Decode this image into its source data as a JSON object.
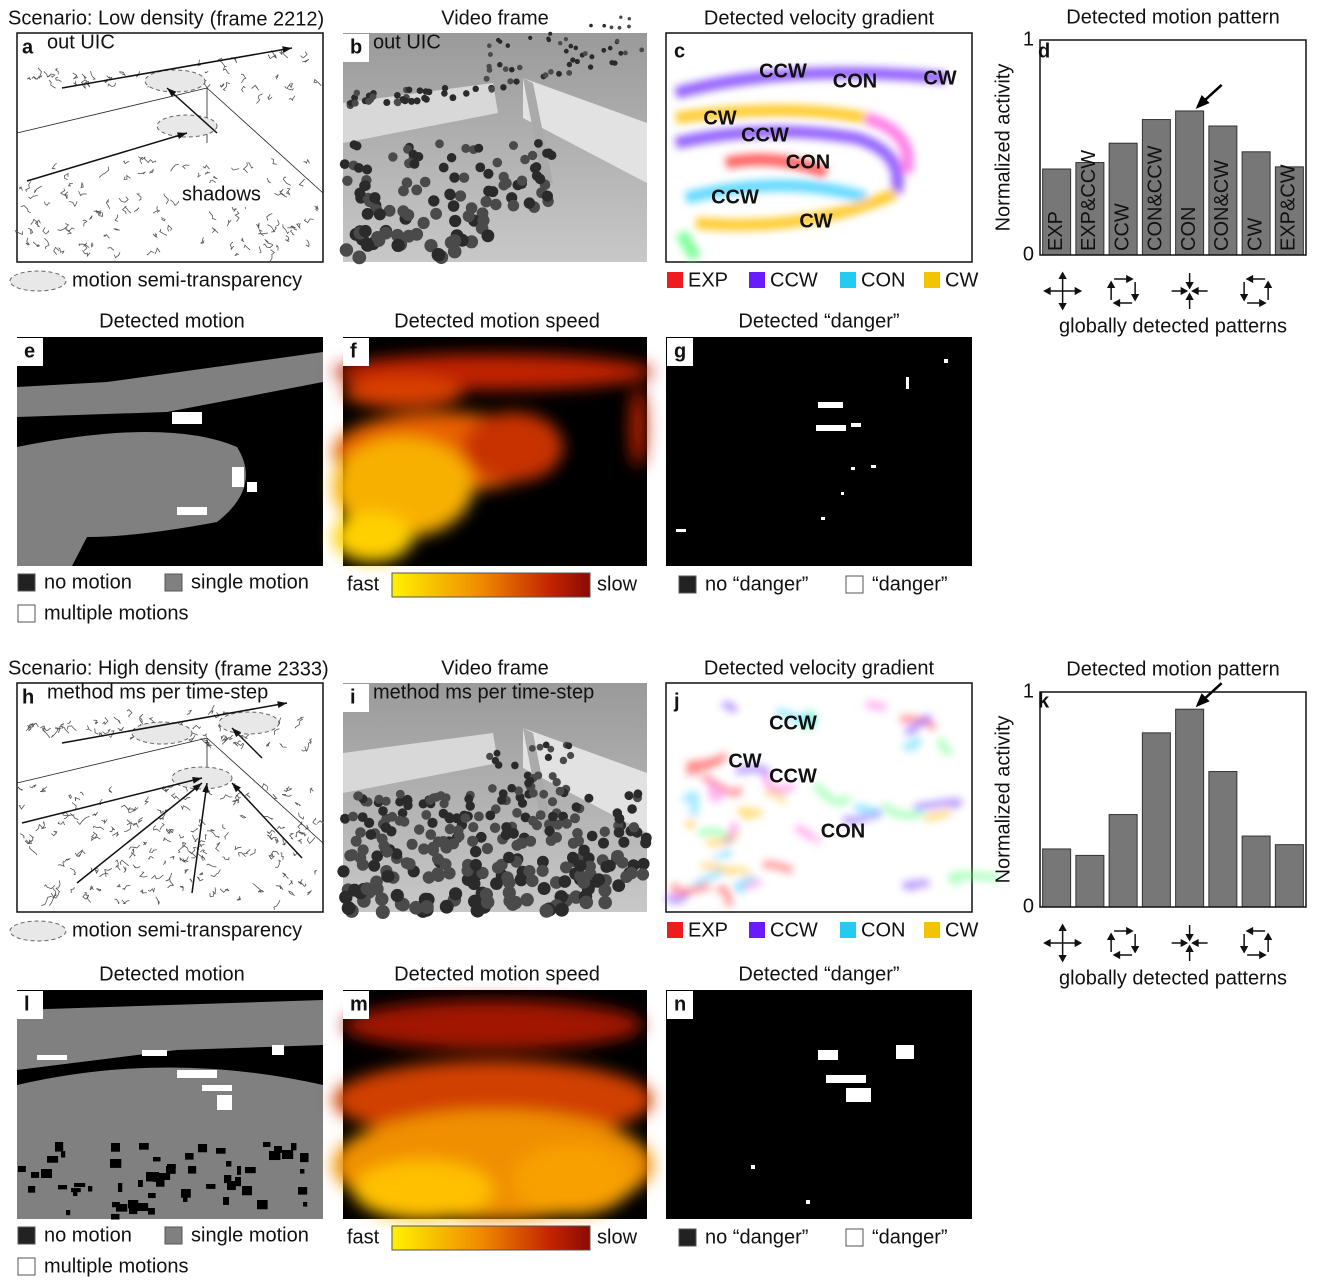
{
  "scenarios": [
    {
      "title": "Scenario: Low density",
      "frame": "(frame 2212)",
      "letters": [
        "a",
        "b",
        "c",
        "d",
        "e",
        "f",
        "g"
      ],
      "sketch_overlay": "out UIC",
      "video_overlay": "out UIC",
      "sketch_note": "shadows",
      "transparency_legend": "motion semi-transparency",
      "video_title": "Video frame",
      "gradient_title": "Detected velocity gradient",
      "gradient_labels": [
        "CCW",
        "CON",
        "CW",
        "CW",
        "CCW",
        "CON",
        "CCW",
        "CW"
      ],
      "gradient_legend": [
        "EXP",
        "CCW",
        "CON",
        "CW"
      ],
      "motion_title": "Detected motion",
      "motion_legend": [
        "no motion",
        "single motion",
        "multiple motions"
      ],
      "speed_title": "Detected motion speed",
      "speed_legend": [
        "fast",
        "slow"
      ],
      "danger_title": "Detected “danger”",
      "danger_legend": [
        "no “danger”",
        "“danger”"
      ],
      "pattern_caption": "globally detected patterns"
    },
    {
      "title": "Scenario: High density",
      "frame": "(frame 2333)",
      "letters": [
        "h",
        "i",
        "j",
        "k",
        "l",
        "m",
        "n"
      ],
      "sketch_overlay": "method ms per time-step",
      "video_overlay": "method ms per time-step",
      "transparency_legend": "motion semi-transparency",
      "video_title": "Video frame",
      "gradient_title": "Detected velocity gradient",
      "gradient_labels": [
        "CCW",
        "CW",
        "CCW",
        "CON"
      ],
      "gradient_legend": [
        "EXP",
        "CCW",
        "CON",
        "CW"
      ],
      "motion_title": "Detected motion",
      "motion_legend": [
        "no motion",
        "single motion",
        "multiple motions"
      ],
      "speed_title": "Detected motion speed",
      "speed_legend": [
        "fast",
        "slow"
      ],
      "danger_title": "Detected “danger”",
      "danger_legend": [
        "no “danger”",
        "“danger”"
      ],
      "pattern_caption": "globally detected patterns"
    }
  ],
  "chart_data": [
    {
      "type": "bar",
      "title": "Detected motion pattern",
      "y_label": "Normalized activity",
      "categories": [
        "EXP",
        "EXP&CCW",
        "CCW",
        "CON&CCW",
        "CON",
        "CON&CW",
        "CW",
        "EXP&CW"
      ],
      "values": [
        0.4,
        0.43,
        0.52,
        0.63,
        0.67,
        0.6,
        0.48,
        0.41
      ],
      "color": "#777777",
      "ylim": [
        0,
        1
      ],
      "yticks": [
        0,
        1
      ]
    },
    {
      "type": "bar",
      "title": "Detected motion pattern",
      "y_label": "Normalized activity",
      "categories": [
        null,
        null,
        null,
        null,
        null,
        null,
        null,
        null
      ],
      "values": [
        0.27,
        0.24,
        0.43,
        0.81,
        0.92,
        0.63,
        0.33,
        0.29
      ],
      "color": "#777777",
      "ylim": [
        0,
        1
      ],
      "yticks": [
        0,
        1
      ]
    }
  ]
}
